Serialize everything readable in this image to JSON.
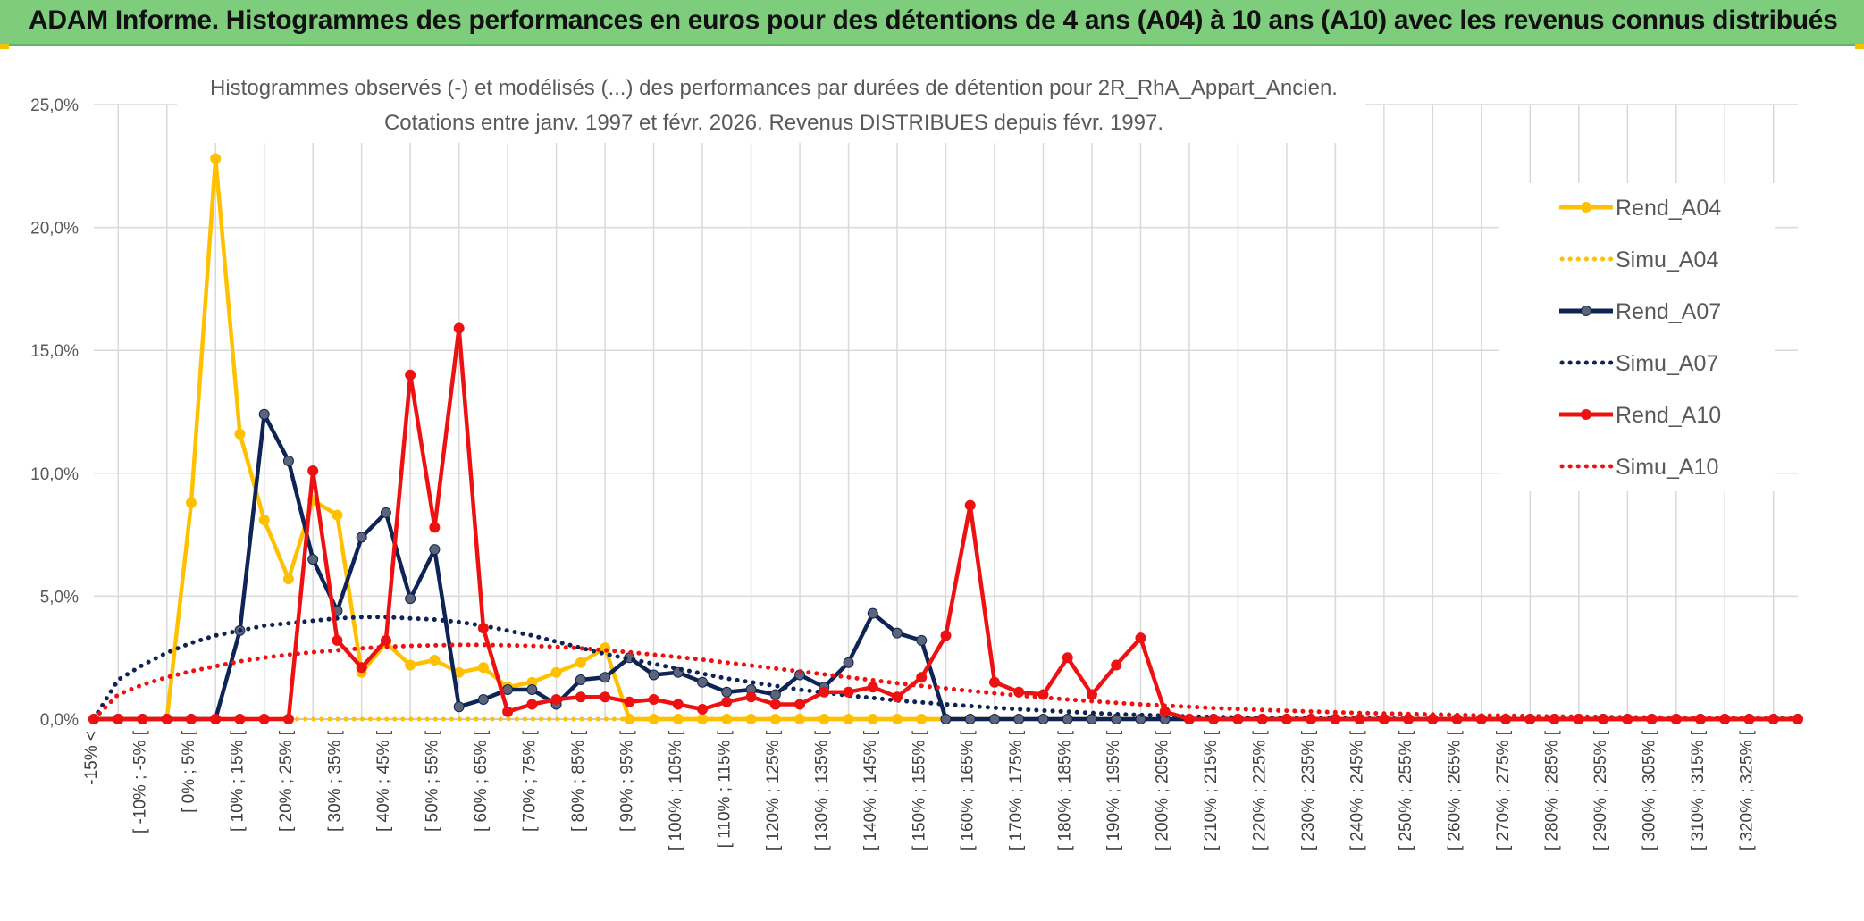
{
  "header": {
    "title": "ADAM Informe. Histogrammes des performances en euros pour des détentions de 4 ans (A04) à 10 ans (A10) avec les revenus connus distribués"
  },
  "colors": {
    "banner": "#7dcd7d",
    "grid": "#d9d9d9",
    "axis_text": "#595959",
    "rend_a04": "#ffc000",
    "rend_a07": "#0e2356",
    "rend_a10": "#ee1111"
  },
  "chart_data": {
    "type": "line",
    "title_line1": "Histogrammes observés (-) et modélisés (...) des performances par durées de détention pour 2R_RhA_Appart_Ancien.",
    "title_line2": "Cotations entre janv. 1997 et févr. 2026. Revenus DISTRIBUES depuis févr. 1997.",
    "xlabel": "",
    "ylabel": "",
    "ylim": [
      0,
      25
    ],
    "yticks": [
      "0,0%",
      "5,0%",
      "10,0%",
      "15,0%",
      "20,0%",
      "25,0%"
    ],
    "grid": true,
    "legend_position": "right",
    "x_tick_labels": [
      "-15% <",
      "[ -10% ; -5% [",
      "[ 0% ; 5% [",
      "[ 10% ; 15% [",
      "[ 20% ; 25% [",
      "[ 30% ; 35% [",
      "[ 40% ; 45% [",
      "[ 50% ; 55% [",
      "[ 60% ; 65% [",
      "[ 70% ; 75% [",
      "[ 80% ; 85% [",
      "[ 90% ; 95% [",
      "[ 100% ; 105% [",
      "[ 110% ; 115% [",
      "[ 120% ; 125% [",
      "[ 130% ; 135% [",
      "[ 140% ; 145% [",
      "[ 150% ; 155% [",
      "[ 160% ; 165% [",
      "[ 170% ; 175% [",
      "[ 180% ; 185% [",
      "[ 190% ; 195% [",
      "[ 200% ; 205% [",
      "[ 210% ; 215% [",
      "[ 220% ; 225% [",
      "[ 230% ; 235% [",
      "[ 240% ; 245% [",
      "[ 250% ; 255% [",
      "[ 260% ; 265% [",
      "[ 270% ; 275% [",
      "[ 280% ; 285% [",
      "[ 290% ; 295% [",
      "[ 300% ; 305% [",
      "[ 310% ; 315% [",
      "[ 320% ; 325% ["
    ],
    "series": [
      {
        "name": "Rend_A04",
        "style": "solid-marker",
        "color": "#ffc000",
        "values": [
          0,
          0,
          0,
          0,
          8.8,
          22.8,
          11.6,
          8.1,
          5.7,
          8.9,
          8.3,
          1.9,
          3.1,
          2.2,
          2.4,
          1.9,
          2.1,
          1.3,
          1.5,
          1.9,
          2.3,
          2.9,
          0,
          0,
          0,
          0,
          0,
          0,
          0,
          0,
          0,
          0,
          0,
          0,
          0,
          0,
          0,
          0,
          0,
          0,
          0,
          0,
          0,
          0,
          0,
          0,
          0,
          0,
          0,
          0,
          0,
          0,
          0,
          0,
          0,
          0,
          0,
          0,
          0,
          0,
          0,
          0,
          0,
          0,
          0,
          0,
          0,
          0,
          0,
          0,
          0
        ]
      },
      {
        "name": "Simu_A04",
        "style": "dotted",
        "color": "#ffc000",
        "values": [
          0,
          0,
          0,
          0,
          0,
          0,
          0,
          0,
          0,
          0,
          0,
          0,
          0,
          0,
          0,
          0,
          0,
          0,
          0,
          0,
          0,
          0,
          0,
          0,
          0,
          0,
          0,
          0,
          0,
          0,
          0,
          0,
          0,
          0,
          0,
          0,
          0,
          0,
          0,
          0,
          0,
          0,
          0,
          0,
          0,
          0,
          0,
          0,
          0,
          0,
          0,
          0,
          0,
          0,
          0,
          0,
          0,
          0,
          0,
          0,
          0,
          0,
          0,
          0,
          0,
          0,
          0,
          0,
          0,
          0,
          0
        ]
      },
      {
        "name": "Rend_A07",
        "style": "solid-marker",
        "color": "#0e2356",
        "values": [
          0,
          0,
          0,
          0,
          0,
          0,
          3.6,
          12.4,
          10.5,
          6.5,
          4.4,
          7.4,
          8.4,
          4.9,
          6.9,
          0.5,
          0.8,
          1.2,
          1.2,
          0.6,
          1.6,
          1.7,
          2.5,
          1.8,
          1.9,
          1.5,
          1.1,
          1.2,
          1.0,
          1.8,
          1.3,
          2.3,
          4.3,
          3.5,
          3.2,
          0,
          0,
          0,
          0,
          0,
          0,
          0,
          0,
          0,
          0,
          0,
          0,
          0,
          0,
          0,
          0,
          0,
          0,
          0,
          0,
          0,
          0,
          0,
          0,
          0,
          0,
          0,
          0,
          0,
          0,
          0,
          0,
          0,
          0,
          0,
          0
        ]
      },
      {
        "name": "Simu_A07",
        "style": "dotted",
        "color": "#0e2356",
        "values": [
          0,
          1.6,
          2.2,
          2.7,
          3.1,
          3.4,
          3.6,
          3.8,
          3.9,
          4.0,
          4.1,
          4.15,
          4.15,
          4.1,
          4.05,
          3.95,
          3.8,
          3.6,
          3.4,
          3.15,
          2.9,
          2.65,
          2.45,
          2.25,
          2.05,
          1.85,
          1.65,
          1.5,
          1.35,
          1.2,
          1.08,
          0.96,
          0.86,
          0.76,
          0.68,
          0.6,
          0.53,
          0.46,
          0.4,
          0.35,
          0.3,
          0.25,
          0.2,
          0.17,
          0.14,
          0.11,
          0.09,
          0.07,
          0.05,
          0.04,
          0.03,
          0.03,
          0.02,
          0.02,
          0.01,
          0.01,
          0,
          0,
          0,
          0,
          0,
          0,
          0,
          0,
          0,
          0,
          0,
          0,
          0,
          0,
          0
        ]
      },
      {
        "name": "Rend_A10",
        "style": "solid-marker",
        "color": "#ee1111",
        "values": [
          0,
          0,
          0,
          0,
          0,
          0,
          0,
          0,
          0,
          10.1,
          3.2,
          2.1,
          3.2,
          14.0,
          7.8,
          15.9,
          3.7,
          0.3,
          0.6,
          0.8,
          0.9,
          0.9,
          0.7,
          0.8,
          0.6,
          0.4,
          0.7,
          0.9,
          0.6,
          0.6,
          1.1,
          1.1,
          1.3,
          0.9,
          1.7,
          3.4,
          8.7,
          1.5,
          1.1,
          1.0,
          2.5,
          1.0,
          2.2,
          3.3,
          0.3,
          0,
          0,
          0,
          0,
          0,
          0,
          0,
          0,
          0,
          0,
          0,
          0,
          0,
          0,
          0,
          0,
          0,
          0,
          0,
          0,
          0,
          0,
          0,
          0,
          0,
          0
        ]
      },
      {
        "name": "Simu_A10",
        "style": "dotted",
        "color": "#ee1111",
        "values": [
          0,
          1.0,
          1.4,
          1.7,
          1.95,
          2.15,
          2.35,
          2.5,
          2.62,
          2.72,
          2.8,
          2.88,
          2.94,
          2.98,
          3.0,
          3.02,
          3.02,
          3.0,
          2.98,
          2.94,
          2.88,
          2.8,
          2.72,
          2.62,
          2.52,
          2.42,
          2.3,
          2.18,
          2.06,
          1.94,
          1.82,
          1.7,
          1.58,
          1.46,
          1.35,
          1.25,
          1.15,
          1.05,
          0.96,
          0.88,
          0.8,
          0.73,
          0.66,
          0.6,
          0.55,
          0.5,
          0.45,
          0.41,
          0.37,
          0.34,
          0.31,
          0.28,
          0.25,
          0.23,
          0.21,
          0.19,
          0.17,
          0.15,
          0.14,
          0.12,
          0.11,
          0.1,
          0.09,
          0.08,
          0.07,
          0.06,
          0.05,
          0.05,
          0.04,
          0.04,
          0.03
        ]
      }
    ]
  }
}
